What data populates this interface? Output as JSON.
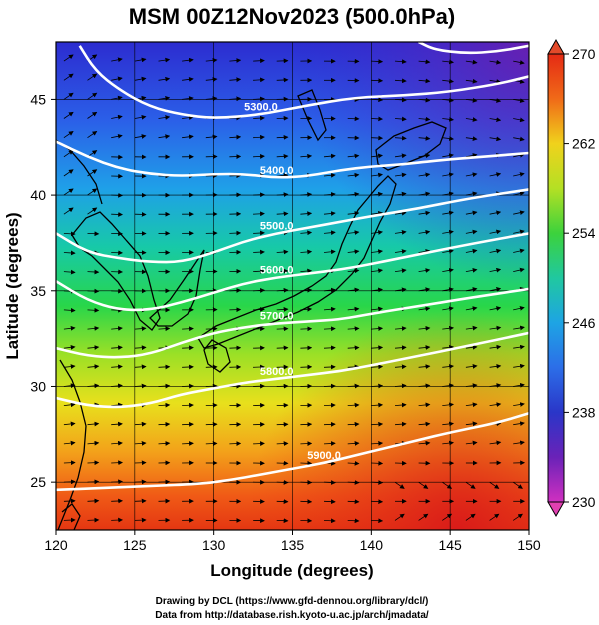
{
  "chart_data": {
    "type": "heatmap",
    "title": "MSM 00Z12Nov2023 (500.0hPa)",
    "xlabel": "Longitude (degrees)",
    "ylabel": "Latitude  (degrees)",
    "xlim": [
      120,
      150
    ],
    "ylim": [
      22.5,
      48
    ],
    "x_ticks": [
      "120",
      "125",
      "130",
      "135",
      "140",
      "145",
      "150"
    ],
    "y_ticks": [
      "25",
      "30",
      "35",
      "40",
      "45"
    ],
    "colorbar": {
      "min": 230,
      "max": 270,
      "ticks": [
        "270",
        "262",
        "254",
        "246",
        "238",
        "230"
      ]
    },
    "contours": [
      {
        "label": "5300.0",
        "points": [
          [
            121.5,
            47.8
          ],
          [
            122.5,
            46.5
          ],
          [
            124,
            45.5
          ],
          [
            126,
            44.6
          ],
          [
            128,
            44.2
          ],
          [
            130,
            44.0
          ],
          [
            133,
            44.2
          ],
          [
            136,
            44.7
          ],
          [
            139,
            45.1
          ],
          [
            142,
            45.2
          ],
          [
            145,
            45.4
          ],
          [
            148,
            45.8
          ],
          [
            150,
            46.2
          ]
        ]
      },
      {
        "label": "5400.0",
        "points": [
          [
            120,
            42.8
          ],
          [
            122,
            42.0
          ],
          [
            124,
            41.4
          ],
          [
            126,
            41.1
          ],
          [
            128,
            41.0
          ],
          [
            130,
            41.1
          ],
          [
            132,
            41.1
          ],
          [
            134,
            40.9
          ],
          [
            136,
            41.0
          ],
          [
            138,
            41.3
          ],
          [
            140,
            41.5
          ],
          [
            142,
            41.6
          ],
          [
            144,
            41.8
          ],
          [
            147,
            42.0
          ],
          [
            150,
            42.2
          ]
        ]
      },
      {
        "label": "5500.0",
        "points": [
          [
            120,
            38.0
          ],
          [
            122,
            37.0
          ],
          [
            124,
            36.7
          ],
          [
            126,
            36.5
          ],
          [
            128,
            36.5
          ],
          [
            130,
            37.0
          ],
          [
            132,
            37.6
          ],
          [
            134,
            38.0
          ],
          [
            136,
            38.3
          ],
          [
            138,
            38.6
          ],
          [
            140,
            38.9
          ],
          [
            143,
            39.3
          ],
          [
            146,
            39.8
          ],
          [
            150,
            40.3
          ]
        ]
      },
      {
        "label": "5600.0",
        "points": [
          [
            120,
            35.5
          ],
          [
            122,
            34.5
          ],
          [
            124,
            34.0
          ],
          [
            126,
            34.0
          ],
          [
            128,
            34.4
          ],
          [
            130,
            34.9
          ],
          [
            132,
            35.4
          ],
          [
            134,
            35.7
          ],
          [
            136,
            35.9
          ],
          [
            138,
            36.1
          ],
          [
            140,
            36.4
          ],
          [
            143,
            36.9
          ],
          [
            146,
            37.4
          ],
          [
            150,
            38.0
          ]
        ]
      },
      {
        "label": "5700.0",
        "points": [
          [
            120,
            32.0
          ],
          [
            122,
            31.6
          ],
          [
            124,
            31.5
          ],
          [
            126,
            31.7
          ],
          [
            128,
            32.3
          ],
          [
            130,
            32.8
          ],
          [
            132,
            33.1
          ],
          [
            134,
            33.3
          ],
          [
            136,
            33.4
          ],
          [
            138,
            33.5
          ],
          [
            140,
            33.8
          ],
          [
            143,
            34.2
          ],
          [
            146,
            34.6
          ],
          [
            150,
            35.1
          ]
        ]
      },
      {
        "label": "5800.0",
        "points": [
          [
            120,
            29.4
          ],
          [
            122,
            29.0
          ],
          [
            124,
            28.9
          ],
          [
            126,
            29.1
          ],
          [
            128,
            29.6
          ],
          [
            130,
            29.9
          ],
          [
            132,
            30.2
          ],
          [
            134,
            30.4
          ],
          [
            136,
            30.6
          ],
          [
            138,
            30.8
          ],
          [
            140,
            31.1
          ],
          [
            143,
            31.6
          ],
          [
            146,
            32.1
          ],
          [
            150,
            32.8
          ]
        ]
      },
      {
        "label": "5900.0",
        "points": [
          [
            120,
            24.6
          ],
          [
            123,
            24.7
          ],
          [
            126,
            24.8
          ],
          [
            129,
            24.9
          ],
          [
            131,
            25.1
          ],
          [
            133,
            25.4
          ],
          [
            135,
            25.7
          ],
          [
            137,
            26.0
          ],
          [
            139,
            26.4
          ],
          [
            141,
            26.8
          ],
          [
            143,
            27.2
          ],
          [
            145,
            27.6
          ],
          [
            148,
            28.1
          ],
          [
            150,
            28.6
          ]
        ]
      },
      {
        "label": "",
        "points": [
          [
            143,
            48
          ],
          [
            144,
            47.6
          ],
          [
            146,
            47.4
          ],
          [
            148,
            47.5
          ],
          [
            150,
            47.8
          ]
        ]
      }
    ],
    "credits": [
      "Drawing by DCL (https://www.gfd-dennou.org/library/dcl/)",
      "Data from http://database.rish.kyoto-u.ac.jp/arch/jmadata/"
    ]
  }
}
